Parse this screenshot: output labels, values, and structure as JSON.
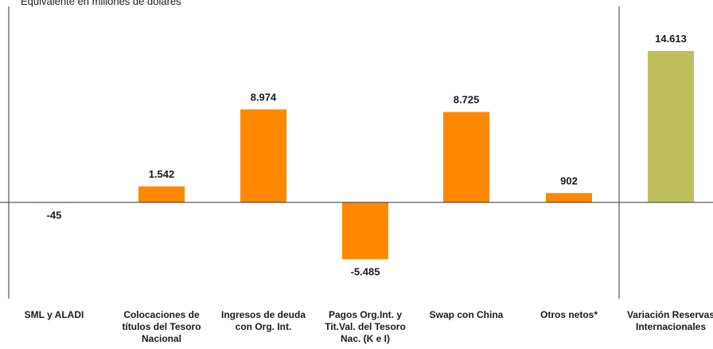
{
  "chart_data": {
    "type": "bar",
    "subtitle": "Equivalente en millones de dólares",
    "categories": [
      "SML y ALADI",
      "Colocaciones de títulos del Tesoro Nacional",
      "Ingresos de deuda con Org. Int.",
      "Pagos Org.Int. y Tit.Val. del Tesoro Nac. (K e I)",
      "Swap con China",
      "Otros netos*",
      "Variación Reservas Internacionales"
    ],
    "values": [
      -45,
      1542,
      8974,
      -5485,
      8725,
      902,
      14613
    ],
    "value_labels": [
      "-45",
      "1.542",
      "8.974",
      "-5.485",
      "8.725",
      "902",
      "14.613"
    ],
    "ylim": [
      -9000,
      18000
    ],
    "grid": false,
    "colors": {
      "components": "#ff8800",
      "total": "#bfc05c",
      "axis": "#333333",
      "text": "#1a1a1a"
    }
  }
}
